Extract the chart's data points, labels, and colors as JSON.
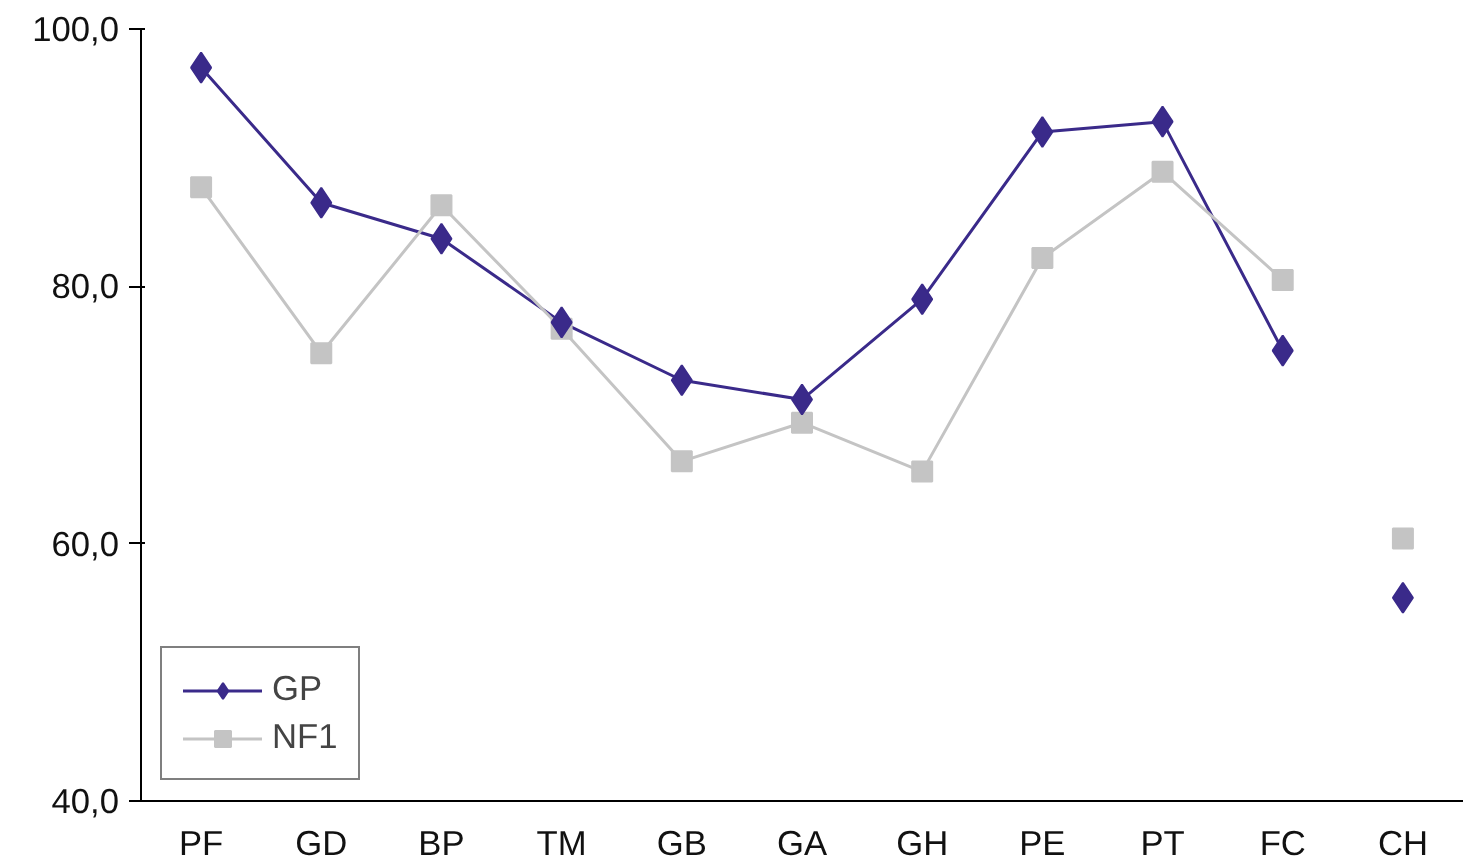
{
  "chart_data": {
    "type": "line",
    "categories": [
      "PF",
      "GD",
      "BP",
      "TM",
      "GB",
      "GA",
      "GH",
      "PE",
      "PT",
      "FC",
      "CH"
    ],
    "series": [
      {
        "name": "GP",
        "color": "#3a2a8a",
        "marker": "diamond",
        "values": [
          97.0,
          86.5,
          83.7,
          77.2,
          72.7,
          71.2,
          79.0,
          92.0,
          92.8,
          75.0,
          null
        ]
      },
      {
        "name": "NF1",
        "color": "#c4c4c4",
        "marker": "square",
        "values": [
          87.7,
          74.8,
          86.3,
          76.7,
          66.4,
          69.4,
          65.6,
          82.2,
          88.9,
          80.5,
          null
        ]
      },
      {
        "type": "scatter",
        "color": "#c4c4c4",
        "marker": "square",
        "values": [
          null,
          null,
          null,
          null,
          null,
          null,
          null,
          null,
          null,
          null,
          60.4
        ]
      },
      {
        "type": "scatter",
        "color": "#3a2a8a",
        "marker": "diamond",
        "values": [
          null,
          null,
          null,
          null,
          null,
          null,
          null,
          null,
          null,
          null,
          55.8
        ]
      }
    ],
    "ylim": [
      40,
      100
    ],
    "yticks": [
      {
        "value": 40,
        "label": "40,0"
      },
      {
        "value": 60,
        "label": "60,0"
      },
      {
        "value": 80,
        "label": "80,0"
      },
      {
        "value": 100,
        "label": "100,0"
      }
    ],
    "grid": false,
    "legend": "bottom left",
    "line_style": "solid"
  }
}
